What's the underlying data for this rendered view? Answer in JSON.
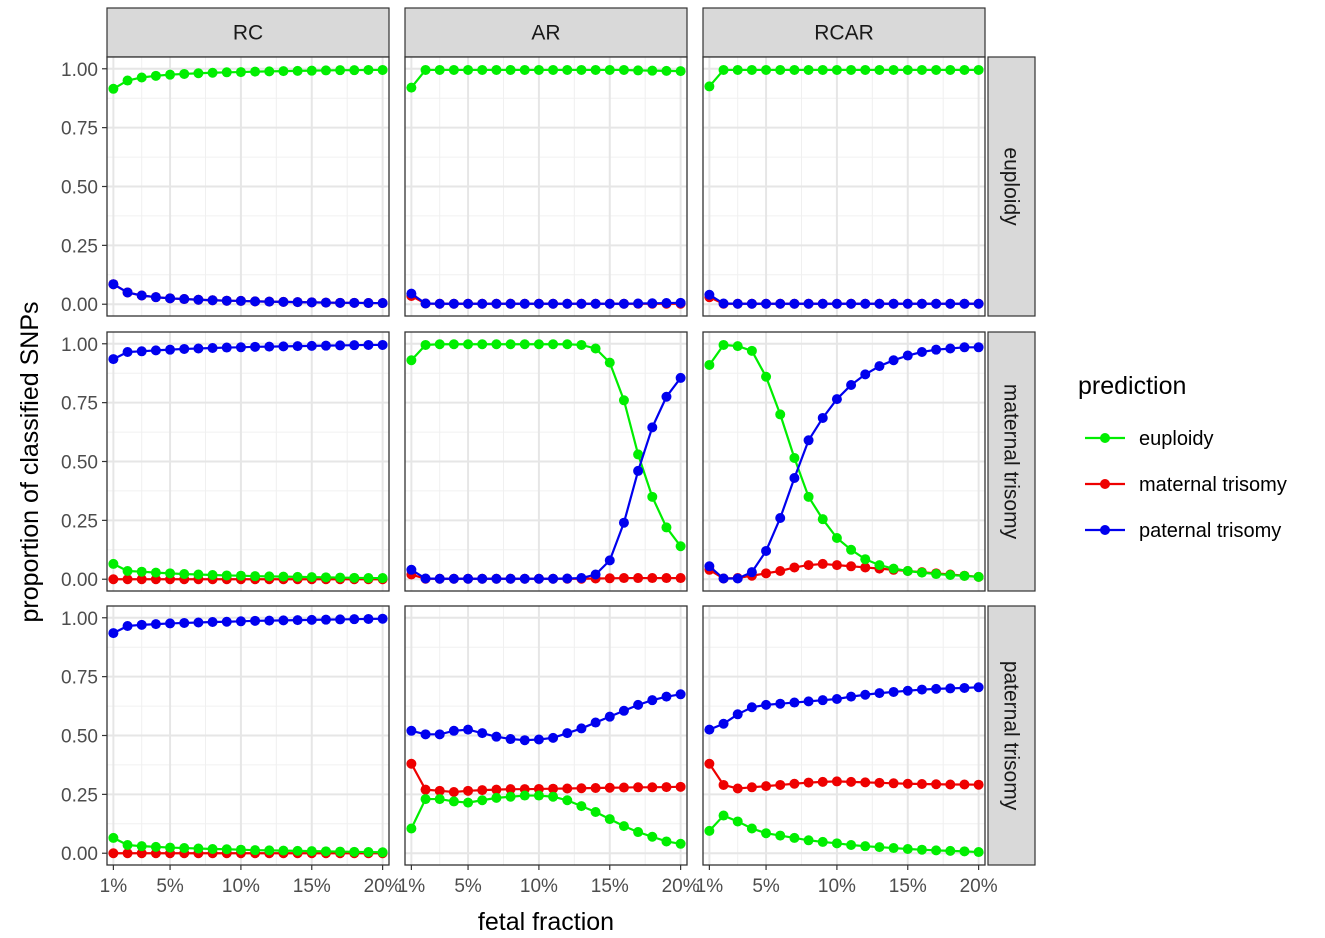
{
  "chart_data": {
    "type": "line",
    "xlabel": "fetal fraction",
    "ylabel": "proportion of classified SNPs",
    "x": [
      1,
      2,
      3,
      4,
      5,
      6,
      7,
      8,
      9,
      10,
      11,
      12,
      13,
      14,
      15,
      16,
      17,
      18,
      19,
      20
    ],
    "x_ticks": [
      {
        "value": 1,
        "label": "1%"
      },
      {
        "value": 5,
        "label": "5%"
      },
      {
        "value": 10,
        "label": "10%"
      },
      {
        "value": 15,
        "label": "15%"
      },
      {
        "value": 20,
        "label": "20%"
      }
    ],
    "y_ticks": [
      {
        "value": 0,
        "label": "0.00"
      },
      {
        "value": 0.25,
        "label": "0.25"
      },
      {
        "value": 0.5,
        "label": "0.50"
      },
      {
        "value": 0.75,
        "label": "0.75"
      },
      {
        "value": 1,
        "label": "1.00"
      }
    ],
    "xlim": [
      0.55,
      20.45
    ],
    "ylim": [
      -0.05,
      1.05
    ],
    "grid": true,
    "legend": {
      "title": "prediction",
      "position": "right"
    },
    "series_meta": [
      {
        "key": "euploidy",
        "name": "euploidy",
        "color": "#00ee00"
      },
      {
        "key": "maternal",
        "name": "maternal trisomy",
        "color": "#ee0000"
      },
      {
        "key": "paternal",
        "name": "paternal trisomy",
        "color": "#0000ee"
      }
    ],
    "columns": [
      "RC",
      "AR",
      "RCAR"
    ],
    "rows": [
      "euploidy",
      "maternal trisomy",
      "paternal trisomy"
    ],
    "panels": [
      [
        {
          "euploidy": [
            0.915,
            0.95,
            0.963,
            0.97,
            0.975,
            0.978,
            0.981,
            0.983,
            0.985,
            0.986,
            0.988,
            0.989,
            0.99,
            0.991,
            0.992,
            0.993,
            0.994,
            0.994,
            0.995,
            0.995
          ],
          "maternal": [
            0.085,
            0.05,
            0.037,
            0.03,
            0.025,
            0.022,
            0.019,
            0.017,
            0.015,
            0.014,
            0.012,
            0.011,
            0.01,
            0.009,
            0.008,
            0.007,
            0.006,
            0.006,
            0.005,
            0.005
          ],
          "paternal": [
            0.085,
            0.05,
            0.037,
            0.03,
            0.025,
            0.022,
            0.019,
            0.017,
            0.015,
            0.014,
            0.012,
            0.011,
            0.01,
            0.009,
            0.008,
            0.007,
            0.006,
            0.006,
            0.005,
            0.005
          ]
        },
        {
          "euploidy": [
            0.92,
            0.995,
            0.995,
            0.995,
            0.995,
            0.995,
            0.995,
            0.995,
            0.995,
            0.995,
            0.995,
            0.995,
            0.995,
            0.995,
            0.995,
            0.995,
            0.993,
            0.992,
            0.991,
            0.99
          ],
          "maternal": [
            0.035,
            0.003,
            0.002,
            0.002,
            0.002,
            0.002,
            0.002,
            0.002,
            0.002,
            0.002,
            0.002,
            0.002,
            0.002,
            0.002,
            0.002,
            0.002,
            0.002,
            0.002,
            0.002,
            0.002
          ],
          "paternal": [
            0.045,
            0.003,
            0.002,
            0.002,
            0.002,
            0.002,
            0.002,
            0.002,
            0.002,
            0.002,
            0.002,
            0.002,
            0.002,
            0.002,
            0.002,
            0.002,
            0.003,
            0.004,
            0.005,
            0.006
          ]
        },
        {
          "euploidy": [
            0.925,
            0.995,
            0.995,
            0.995,
            0.995,
            0.995,
            0.995,
            0.995,
            0.995,
            0.995,
            0.995,
            0.995,
            0.995,
            0.995,
            0.995,
            0.995,
            0.995,
            0.995,
            0.995,
            0.995
          ],
          "maternal": [
            0.03,
            0.002,
            0.002,
            0.002,
            0.002,
            0.002,
            0.002,
            0.002,
            0.002,
            0.002,
            0.002,
            0.002,
            0.002,
            0.002,
            0.002,
            0.002,
            0.002,
            0.002,
            0.002,
            0.002
          ],
          "paternal": [
            0.04,
            0.003,
            0.002,
            0.002,
            0.002,
            0.002,
            0.002,
            0.002,
            0.002,
            0.002,
            0.002,
            0.002,
            0.002,
            0.002,
            0.002,
            0.002,
            0.002,
            0.002,
            0.002,
            0.002
          ]
        }
      ],
      [
        {
          "euploidy": [
            0.065,
            0.035,
            0.032,
            0.028,
            0.025,
            0.022,
            0.02,
            0.018,
            0.016,
            0.015,
            0.013,
            0.012,
            0.011,
            0.01,
            0.009,
            0.008,
            0.007,
            0.006,
            0.005,
            0.005
          ],
          "maternal": [
            0.0,
            0.0,
            0.0,
            0.0,
            0.0,
            0.0,
            0.0,
            0.0,
            0.0,
            0.0,
            0.0,
            0.0,
            0.0,
            0.0,
            0.0,
            0.0,
            0.0,
            0.0,
            0.0,
            0.0
          ],
          "paternal": [
            0.935,
            0.965,
            0.968,
            0.972,
            0.975,
            0.978,
            0.98,
            0.982,
            0.984,
            0.985,
            0.987,
            0.988,
            0.989,
            0.99,
            0.991,
            0.992,
            0.993,
            0.994,
            0.995,
            0.995
          ]
        },
        {
          "euploidy": [
            0.93,
            0.995,
            0.998,
            0.998,
            0.998,
            0.998,
            0.998,
            0.998,
            0.998,
            0.998,
            0.998,
            0.998,
            0.995,
            0.98,
            0.92,
            0.76,
            0.53,
            0.35,
            0.22,
            0.14
          ],
          "maternal": [
            0.02,
            0.002,
            0.002,
            0.002,
            0.002,
            0.002,
            0.002,
            0.002,
            0.002,
            0.002,
            0.002,
            0.002,
            0.002,
            0.003,
            0.004,
            0.005,
            0.005,
            0.005,
            0.005,
            0.005
          ],
          "paternal": [
            0.04,
            0.003,
            0.002,
            0.002,
            0.002,
            0.002,
            0.002,
            0.002,
            0.002,
            0.002,
            0.002,
            0.003,
            0.005,
            0.02,
            0.08,
            0.24,
            0.46,
            0.645,
            0.775,
            0.855
          ]
        },
        {
          "euploidy": [
            0.91,
            0.995,
            0.99,
            0.97,
            0.86,
            0.7,
            0.515,
            0.35,
            0.255,
            0.175,
            0.125,
            0.085,
            0.06,
            0.045,
            0.035,
            0.028,
            0.022,
            0.018,
            0.014,
            0.01
          ],
          "maternal": [
            0.04,
            0.003,
            0.005,
            0.015,
            0.025,
            0.035,
            0.05,
            0.06,
            0.065,
            0.06,
            0.055,
            0.05,
            0.045,
            0.04,
            0.035,
            0.03,
            0.025,
            0.02,
            0.015,
            0.01
          ],
          "paternal": [
            0.055,
            0.003,
            0.003,
            0.03,
            0.12,
            0.26,
            0.43,
            0.59,
            0.685,
            0.765,
            0.825,
            0.87,
            0.905,
            0.93,
            0.95,
            0.965,
            0.975,
            0.98,
            0.985,
            0.985
          ]
        }
      ],
      [
        {
          "euploidy": [
            0.065,
            0.035,
            0.03,
            0.027,
            0.024,
            0.022,
            0.02,
            0.018,
            0.017,
            0.015,
            0.013,
            0.012,
            0.011,
            0.01,
            0.009,
            0.008,
            0.007,
            0.006,
            0.005,
            0.004
          ],
          "maternal": [
            0.0,
            0.0,
            0.0,
            0.0,
            0.0,
            0.0,
            0.0,
            0.0,
            0.0,
            0.0,
            0.0,
            0.0,
            0.0,
            0.0,
            0.0,
            0.0,
            0.0,
            0.0,
            0.0,
            0.0
          ],
          "paternal": [
            0.935,
            0.965,
            0.97,
            0.973,
            0.976,
            0.978,
            0.98,
            0.982,
            0.983,
            0.985,
            0.987,
            0.988,
            0.989,
            0.99,
            0.991,
            0.992,
            0.993,
            0.994,
            0.995,
            0.996
          ]
        },
        {
          "euploidy": [
            0.105,
            0.23,
            0.23,
            0.22,
            0.215,
            0.225,
            0.235,
            0.24,
            0.245,
            0.245,
            0.24,
            0.225,
            0.2,
            0.175,
            0.145,
            0.115,
            0.09,
            0.07,
            0.05,
            0.04
          ],
          "maternal": [
            0.38,
            0.27,
            0.265,
            0.26,
            0.265,
            0.268,
            0.27,
            0.272,
            0.272,
            0.273,
            0.274,
            0.275,
            0.276,
            0.277,
            0.278,
            0.279,
            0.28,
            0.28,
            0.281,
            0.282
          ],
          "paternal": [
            0.52,
            0.505,
            0.505,
            0.52,
            0.525,
            0.51,
            0.495,
            0.485,
            0.48,
            0.483,
            0.49,
            0.51,
            0.53,
            0.555,
            0.58,
            0.605,
            0.63,
            0.65,
            0.665,
            0.675
          ]
        },
        {
          "euploidy": [
            0.095,
            0.16,
            0.135,
            0.105,
            0.085,
            0.075,
            0.065,
            0.055,
            0.048,
            0.042,
            0.035,
            0.03,
            0.026,
            0.022,
            0.018,
            0.015,
            0.012,
            0.01,
            0.008,
            0.005
          ],
          "maternal": [
            0.38,
            0.29,
            0.275,
            0.28,
            0.285,
            0.29,
            0.295,
            0.3,
            0.303,
            0.305,
            0.303,
            0.301,
            0.299,
            0.297,
            0.295,
            0.294,
            0.293,
            0.292,
            0.292,
            0.291
          ],
          "paternal": [
            0.525,
            0.55,
            0.59,
            0.62,
            0.63,
            0.635,
            0.64,
            0.645,
            0.65,
            0.655,
            0.665,
            0.673,
            0.68,
            0.685,
            0.69,
            0.695,
            0.698,
            0.7,
            0.702,
            0.705
          ]
        }
      ]
    ]
  }
}
